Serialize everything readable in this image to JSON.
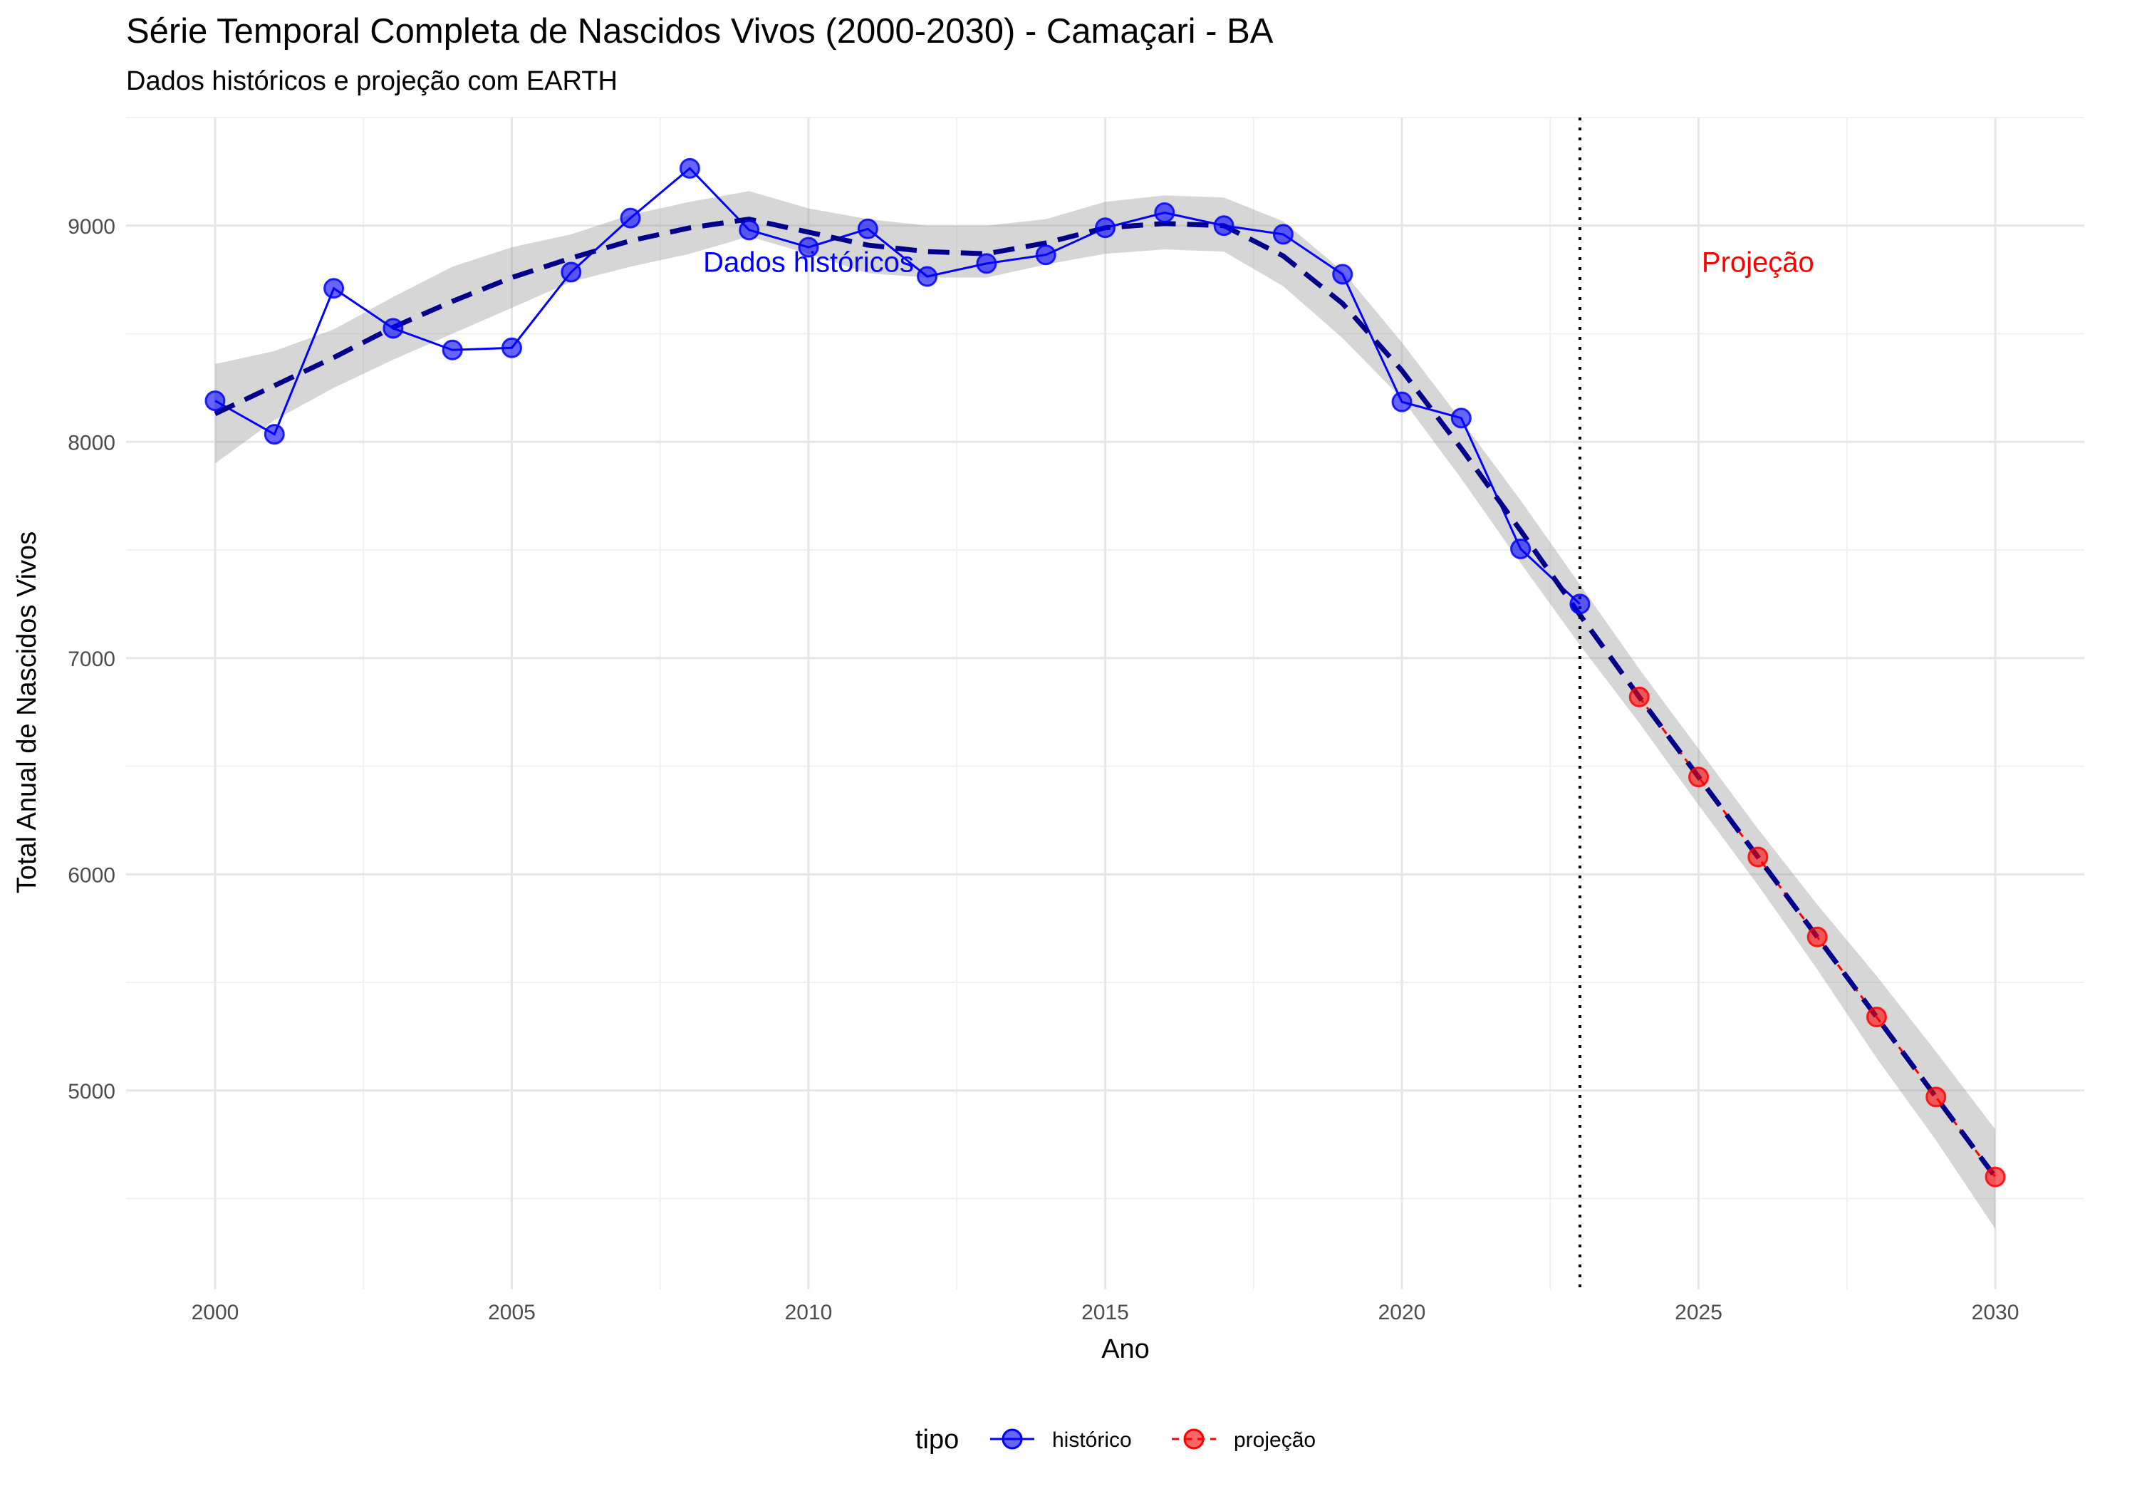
{
  "chart_data": {
    "type": "line",
    "title": "Série Temporal Completa de Nascidos Vivos (2000-2030) -  Camaçari - BA",
    "subtitle": "Dados históricos e projeção com EARTH",
    "xlabel": "Ano",
    "ylabel": "Total Anual de Nascidos Vivos",
    "xlim": [
      1998.5,
      2031.5
    ],
    "ylim": [
      4080,
      9500
    ],
    "x_ticks": [
      2000,
      2005,
      2010,
      2015,
      2020,
      2025,
      2030
    ],
    "y_ticks": [
      5000,
      6000,
      7000,
      8000,
      9000
    ],
    "grid": true,
    "legend": {
      "title": "tipo",
      "position": "bottom",
      "entries": [
        {
          "label": "histórico",
          "color": "#0000ff"
        },
        {
          "label": "projeção",
          "color": "#ff0000"
        }
      ]
    },
    "cutoff_year": 2023,
    "annotations": [
      {
        "text": "Dados históricos",
        "x": 2010,
        "y": 8800,
        "color": "#0000ff"
      },
      {
        "text": "Projeção",
        "x": 2026,
        "y": 8800,
        "color": "#ff0000"
      }
    ],
    "series": [
      {
        "name": "histórico",
        "color": "#0000ff",
        "x": [
          2000,
          2001,
          2002,
          2003,
          2004,
          2005,
          2006,
          2007,
          2008,
          2009,
          2010,
          2011,
          2012,
          2013,
          2014,
          2015,
          2016,
          2017,
          2018,
          2019,
          2020,
          2021,
          2022,
          2023
        ],
        "y": [
          8190,
          8035,
          8710,
          8525,
          8425,
          8435,
          8785,
          9035,
          9265,
          8980,
          8900,
          8985,
          8765,
          8825,
          8865,
          8990,
          9060,
          9000,
          8960,
          8775,
          8185,
          8110,
          7505,
          7250
        ]
      },
      {
        "name": "projeção",
        "color": "#ff0000",
        "x": [
          2024,
          2025,
          2026,
          2027,
          2028,
          2029,
          2030
        ],
        "y": [
          6820,
          6450,
          6080,
          5710,
          5340,
          4970,
          4600
        ]
      }
    ],
    "smooth": {
      "color": "#00008b",
      "style": "dashed",
      "x": [
        2000,
        2001,
        2002,
        2003,
        2004,
        2005,
        2006,
        2007,
        2008,
        2009,
        2010,
        2011,
        2012,
        2013,
        2014,
        2015,
        2016,
        2017,
        2018,
        2019,
        2020,
        2021,
        2022,
        2023,
        2024,
        2025,
        2026,
        2027,
        2028,
        2029,
        2030
      ],
      "y": [
        8130,
        8260,
        8390,
        8530,
        8650,
        8760,
        8850,
        8930,
        8990,
        9030,
        8970,
        8910,
        8880,
        8870,
        8920,
        8990,
        9010,
        9000,
        8860,
        8640,
        8330,
        7970,
        7590,
        7200,
        6820,
        6450,
        6080,
        5710,
        5340,
        4970,
        4600
      ],
      "lower": [
        7900,
        8100,
        8250,
        8380,
        8500,
        8620,
        8740,
        8810,
        8870,
        8950,
        8870,
        8780,
        8760,
        8760,
        8820,
        8870,
        8890,
        8880,
        8720,
        8480,
        8200,
        7830,
        7440,
        7060,
        6700,
        6320,
        5950,
        5560,
        5150,
        4770,
        4360
      ],
      "upper": [
        8360,
        8420,
        8520,
        8670,
        8810,
        8900,
        8960,
        9050,
        9110,
        9160,
        9080,
        9030,
        9000,
        9000,
        9030,
        9110,
        9140,
        9130,
        9020,
        8790,
        8460,
        8100,
        7730,
        7340,
        6950,
        6580,
        6210,
        5860,
        5530,
        5180,
        4820
      ]
    }
  }
}
